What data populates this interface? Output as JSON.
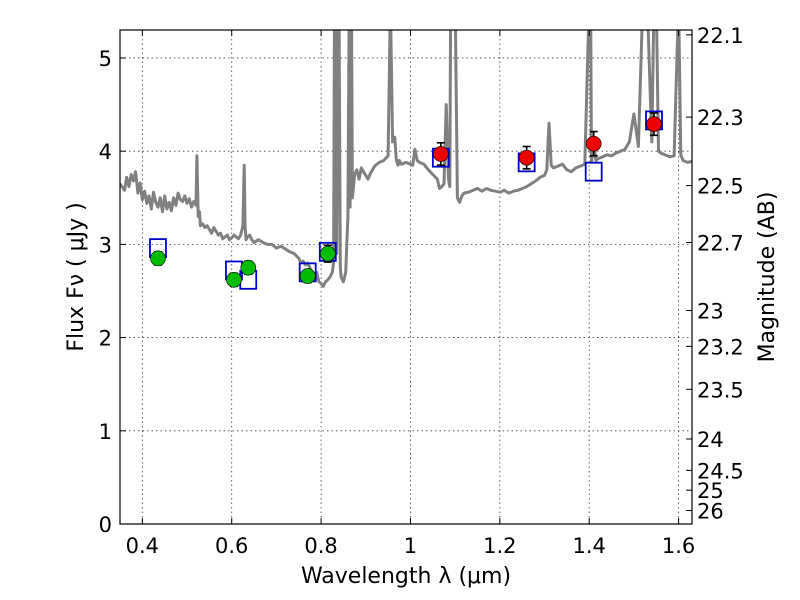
{
  "chart_data": {
    "type": "scatter",
    "xlabel": "Wavelength  λ (μm)",
    "ylabel": "Flux  Fν  ( μJy )",
    "y2label": "Magnitude (AB)",
    "xlim": [
      0.35,
      1.63
    ],
    "ylim": [
      0,
      5.3
    ],
    "grid": true,
    "x_ticks": [
      "0.4",
      "0.6",
      "0.8",
      "1",
      "1.2",
      "1.4",
      "1.6"
    ],
    "x_tick_values": [
      0.4,
      0.6,
      0.8,
      1.0,
      1.2,
      1.4,
      1.6
    ],
    "y_ticks": [
      "0",
      "1",
      "2",
      "3",
      "4",
      "5"
    ],
    "y_tick_values": [
      0,
      1,
      2,
      3,
      4,
      5
    ],
    "mag_ticks": [
      "22.1",
      "22.3",
      "22.5",
      "22.7",
      "23",
      "23.2",
      "23.5",
      "24",
      "24.5",
      "25",
      "26"
    ],
    "mag_tick_values": [
      22.1,
      22.3,
      22.5,
      22.7,
      23,
      23.2,
      23.5,
      24,
      24.5,
      25,
      26
    ],
    "series": [
      {
        "kind": "template",
        "color": "#808080",
        "x": [
          0.35,
          0.36,
          0.365,
          0.37,
          0.375,
          0.38,
          0.385,
          0.39,
          0.395,
          0.4,
          0.405,
          0.41,
          0.415,
          0.42,
          0.425,
          0.43,
          0.435,
          0.44,
          0.445,
          0.45,
          0.455,
          0.46,
          0.465,
          0.47,
          0.475,
          0.48,
          0.485,
          0.49,
          0.495,
          0.5,
          0.505,
          0.51,
          0.515,
          0.52,
          0.522,
          0.525,
          0.528,
          0.53,
          0.535,
          0.54,
          0.545,
          0.55,
          0.555,
          0.56,
          0.565,
          0.57,
          0.575,
          0.58,
          0.585,
          0.59,
          0.595,
          0.6,
          0.605,
          0.61,
          0.615,
          0.62,
          0.625,
          0.628,
          0.63,
          0.632,
          0.635,
          0.64,
          0.645,
          0.65,
          0.66,
          0.67,
          0.68,
          0.69,
          0.7,
          0.71,
          0.72,
          0.73,
          0.74,
          0.75,
          0.755,
          0.76,
          0.765,
          0.77,
          0.775,
          0.78,
          0.785,
          0.79,
          0.795,
          0.8,
          0.805,
          0.81,
          0.815,
          0.82,
          0.825,
          0.828,
          0.83,
          0.833,
          0.835,
          0.838,
          0.84,
          0.843,
          0.845,
          0.85,
          0.855,
          0.86,
          0.863,
          0.865,
          0.868,
          0.87,
          0.873,
          0.875,
          0.88,
          0.885,
          0.89,
          0.895,
          0.9,
          0.905,
          0.91,
          0.915,
          0.92,
          0.93,
          0.94,
          0.95,
          0.955,
          0.96,
          0.965,
          0.968,
          0.97,
          0.972,
          0.975,
          0.98,
          0.99,
          1.0,
          1.005,
          1.01,
          1.015,
          1.02,
          1.03,
          1.04,
          1.05,
          1.06,
          1.065,
          1.07,
          1.075,
          1.08,
          1.085,
          1.088,
          1.09,
          1.095,
          1.1,
          1.105,
          1.11,
          1.115,
          1.12,
          1.13,
          1.14,
          1.15,
          1.16,
          1.17,
          1.18,
          1.19,
          1.2,
          1.21,
          1.22,
          1.23,
          1.24,
          1.25,
          1.26,
          1.27,
          1.28,
          1.29,
          1.3,
          1.305,
          1.31,
          1.315,
          1.32,
          1.33,
          1.34,
          1.35,
          1.36,
          1.37,
          1.38,
          1.39,
          1.4,
          1.403,
          1.405,
          1.41,
          1.415,
          1.42,
          1.43,
          1.44,
          1.45,
          1.46,
          1.47,
          1.48,
          1.49,
          1.5,
          1.51,
          1.52,
          1.53,
          1.54,
          1.545,
          1.55,
          1.555,
          1.56,
          1.57,
          1.58,
          1.59,
          1.6,
          1.605,
          1.61,
          1.62,
          1.63
        ],
        "y": [
          3.65,
          3.58,
          3.72,
          3.62,
          3.75,
          3.68,
          3.78,
          3.55,
          3.66,
          3.48,
          3.57,
          3.44,
          3.52,
          3.38,
          3.56,
          3.45,
          3.4,
          3.5,
          3.35,
          3.52,
          3.38,
          3.45,
          3.36,
          3.5,
          3.42,
          3.55,
          3.48,
          3.46,
          3.52,
          3.44,
          3.49,
          3.4,
          3.46,
          3.42,
          3.95,
          3.3,
          3.35,
          3.2,
          3.22,
          3.18,
          3.2,
          3.16,
          3.12,
          3.18,
          3.14,
          3.1,
          3.12,
          3.06,
          3.08,
          3.1,
          3.05,
          3.07,
          3.1,
          3.08,
          3.06,
          3.1,
          3.2,
          3.85,
          3.2,
          3.05,
          3.08,
          3.1,
          3.05,
          3.02,
          3.05,
          3.02,
          3.0,
          3.0,
          2.96,
          2.98,
          2.95,
          2.92,
          2.9,
          2.85,
          2.8,
          2.82,
          2.78,
          2.8,
          2.75,
          2.68,
          2.65,
          2.7,
          2.6,
          2.58,
          2.55,
          2.6,
          2.62,
          2.65,
          2.7,
          2.8,
          5.6,
          5.6,
          2.9,
          5.6,
          5.6,
          2.75,
          2.65,
          2.6,
          2.7,
          3.3,
          5.6,
          3.4,
          5.6,
          3.5,
          3.65,
          3.75,
          3.8,
          3.7,
          3.82,
          3.78,
          3.74,
          3.7,
          3.76,
          3.8,
          3.84,
          3.88,
          3.9,
          3.95,
          5.6,
          4.1,
          4.15,
          3.92,
          3.88,
          3.85,
          3.9,
          3.86,
          3.88,
          3.86,
          3.85,
          4.02,
          3.9,
          3.88,
          3.86,
          3.8,
          3.75,
          3.7,
          3.6,
          3.62,
          3.65,
          4.5,
          3.7,
          3.62,
          5.6,
          5.6,
          5.6,
          3.5,
          3.45,
          3.52,
          3.55,
          3.56,
          3.58,
          3.6,
          3.57,
          3.6,
          3.58,
          3.57,
          3.56,
          3.58,
          3.55,
          3.57,
          3.58,
          3.6,
          3.62,
          3.65,
          3.68,
          3.72,
          3.74,
          3.8,
          4.3,
          3.85,
          3.82,
          3.84,
          3.86,
          3.8,
          3.78,
          3.82,
          3.84,
          3.86,
          5.6,
          5.6,
          3.88,
          4.1,
          3.9,
          3.92,
          3.94,
          3.96,
          3.95,
          3.98,
          4.0,
          4.02,
          4.1,
          4.4,
          4.05,
          5.6,
          5.6,
          4.1,
          5.6,
          5.6,
          4.0,
          3.98,
          3.96,
          3.94,
          3.95,
          5.6,
          3.96,
          3.9,
          3.88,
          3.89
        ]
      },
      {
        "kind": "model-boxes",
        "color": "#0000cc",
        "x": [
          0.435,
          0.605,
          0.637,
          0.77,
          0.815,
          1.068,
          1.26,
          1.41,
          1.545
        ],
        "y": [
          2.96,
          2.72,
          2.62,
          2.7,
          2.92,
          3.93,
          3.88,
          3.78,
          4.33
        ]
      },
      {
        "kind": "optical",
        "color": "#00bb00",
        "x": [
          0.435,
          0.605,
          0.637,
          0.77,
          0.815
        ],
        "y": [
          2.85,
          2.62,
          2.75,
          2.66,
          2.9
        ],
        "err": [
          0.07,
          0.07,
          0.07,
          0.07,
          0.09
        ]
      },
      {
        "kind": "near-ir",
        "color": "#ee0000",
        "x": [
          1.068,
          1.26,
          1.41,
          1.545
        ],
        "y": [
          3.97,
          3.93,
          4.08,
          4.29
        ],
        "err": [
          0.12,
          0.12,
          0.13,
          0.12
        ]
      }
    ]
  }
}
